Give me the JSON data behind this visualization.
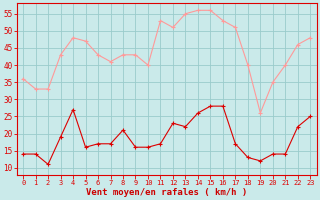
{
  "x": [
    0,
    1,
    2,
    3,
    4,
    5,
    6,
    7,
    8,
    9,
    10,
    11,
    12,
    13,
    14,
    15,
    16,
    17,
    18,
    19,
    20,
    21,
    22,
    23
  ],
  "vent_moyen": [
    14,
    14,
    11,
    19,
    27,
    16,
    17,
    17,
    21,
    16,
    16,
    17,
    23,
    22,
    26,
    28,
    28,
    17,
    13,
    12,
    14,
    14,
    22,
    25
  ],
  "rafales": [
    36,
    33,
    33,
    43,
    48,
    47,
    43,
    41,
    43,
    43,
    40,
    53,
    51,
    55,
    56,
    56,
    53,
    51,
    40,
    26,
    35,
    40,
    46,
    48
  ],
  "bg_color": "#caeaea",
  "grid_color": "#99cccc",
  "line_color_moyen": "#dd0000",
  "line_color_rafales": "#ff9999",
  "xlabel": "Vent moyen/en rafales ( km/h )",
  "xlabel_color": "#cc0000",
  "tick_color": "#dd0000",
  "ylim": [
    8,
    58
  ],
  "yticks": [
    10,
    15,
    20,
    25,
    30,
    35,
    40,
    45,
    50,
    55
  ],
  "xlim": [
    -0.5,
    23.5
  ],
  "xticks": [
    0,
    1,
    2,
    3,
    4,
    5,
    6,
    7,
    8,
    9,
    10,
    11,
    12,
    13,
    14,
    15,
    16,
    17,
    18,
    19,
    20,
    21,
    22,
    23
  ]
}
